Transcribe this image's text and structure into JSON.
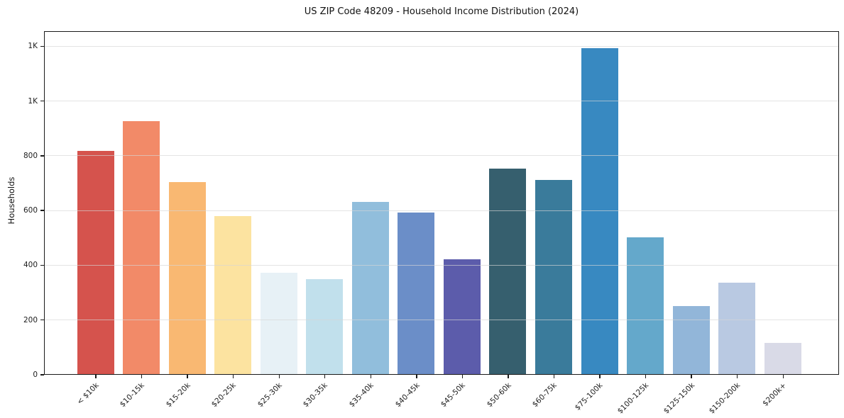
{
  "figure": {
    "title": "US ZIP Code 48209 - Household Income Distribution (2024)"
  },
  "chart_data": {
    "type": "bar",
    "title": "US ZIP Code 48209 - Household Income Distribution (2024)",
    "xlabel": "",
    "ylabel": "Households",
    "categories": [
      "< $10k",
      "$10-15k",
      "$15-20k",
      "$20-25k",
      "$25-30k",
      "$30-35k",
      "$35-40k",
      "$40-45k",
      "$45-50k",
      "$50-60k",
      "$60-75k",
      "$75-100k",
      "$100-125k",
      "$125-150k",
      "$150-200k",
      "$200k+"
    ],
    "values": [
      815,
      925,
      700,
      578,
      370,
      348,
      628,
      590,
      420,
      750,
      710,
      1190,
      500,
      248,
      335,
      115
    ],
    "bar_colors": [
      "#d5534d",
      "#f28a68",
      "#f9b872",
      "#fce3a0",
      "#e7f1f6",
      "#c1e0ec",
      "#91bedc",
      "#6b8ec8",
      "#5c5cab",
      "#365f6e",
      "#3a7b9b",
      "#3889c1",
      "#64a8cb",
      "#92b6d9",
      "#b9c9e2",
      "#d9dae7"
    ],
    "ylim": [
      0,
      1255
    ],
    "yticks": [
      {
        "value": 0,
        "label": "0"
      },
      {
        "value": 200,
        "label": "200"
      },
      {
        "value": 400,
        "label": "400"
      },
      {
        "value": 600,
        "label": "600"
      },
      {
        "value": 800,
        "label": "800"
      },
      {
        "value": 1000,
        "label": "1K"
      },
      {
        "value": 1200,
        "label": "1K"
      }
    ],
    "grid": true,
    "grid_axis": "y",
    "legend": false
  }
}
